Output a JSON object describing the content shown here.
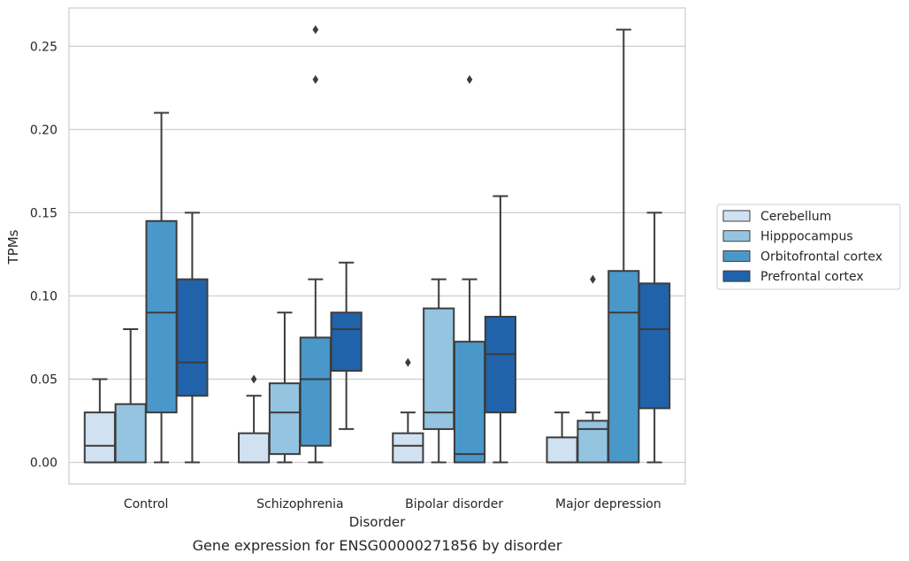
{
  "chart_data": {
    "type": "box",
    "categories": [
      "Control",
      "Schizophrenia",
      "Bipolar disorder",
      "Major depression"
    ],
    "xlabel": "Disorder",
    "ylabel": "TPMs",
    "caption": "Gene expression for ENSG00000271856 by disorder",
    "ylim": [
      -0.013,
      0.273
    ],
    "yticks": [
      0.0,
      0.05,
      0.1,
      0.15,
      0.2,
      0.25
    ],
    "ytick_labels": [
      "0.00",
      "0.05",
      "0.10",
      "0.15",
      "0.20",
      "0.25"
    ],
    "grid": "horizontal",
    "legend": {
      "position": "right",
      "entries": [
        "Cerebellum",
        "Hipppocampus",
        "Orbitofrontal cortex",
        "Prefrontal cortex"
      ]
    },
    "series": [
      {
        "name": "Cerebellum",
        "color": "#d0e1f2",
        "boxes": [
          {
            "whislo": 0.0,
            "q1": 0.0,
            "med": 0.01,
            "q3": 0.03,
            "whishi": 0.05,
            "fliers": []
          },
          {
            "whislo": 0.0,
            "q1": 0.0,
            "med": 0.0,
            "q3": 0.0175,
            "whishi": 0.04,
            "fliers": [
              0.05
            ]
          },
          {
            "whislo": 0.0,
            "q1": 0.0,
            "med": 0.01,
            "q3": 0.0175,
            "whishi": 0.03,
            "fliers": [
              0.06
            ]
          },
          {
            "whislo": 0.0,
            "q1": 0.0,
            "med": 0.0,
            "q3": 0.015,
            "whishi": 0.03,
            "fliers": []
          }
        ]
      },
      {
        "name": "Hipppocampus",
        "color": "#94c4df",
        "boxes": [
          {
            "whislo": 0.0,
            "q1": 0.0,
            "med": 0.0,
            "q3": 0.035,
            "whishi": 0.08,
            "fliers": []
          },
          {
            "whislo": 0.0,
            "q1": 0.005,
            "med": 0.03,
            "q3": 0.0475,
            "whishi": 0.09,
            "fliers": []
          },
          {
            "whislo": 0.0,
            "q1": 0.02,
            "med": 0.03,
            "q3": 0.0925,
            "whishi": 0.11,
            "fliers": []
          },
          {
            "whislo": 0.0,
            "q1": 0.0,
            "med": 0.02,
            "q3": 0.025,
            "whishi": 0.03,
            "fliers": [
              0.11
            ]
          }
        ]
      },
      {
        "name": "Orbitofrontal cortex",
        "color": "#4a98c9",
        "boxes": [
          {
            "whislo": 0.0,
            "q1": 0.03,
            "med": 0.09,
            "q3": 0.145,
            "whishi": 0.21,
            "fliers": []
          },
          {
            "whislo": 0.0,
            "q1": 0.01,
            "med": 0.05,
            "q3": 0.075,
            "whishi": 0.11,
            "fliers": [
              0.23,
              0.26
            ]
          },
          {
            "whislo": 0.0,
            "q1": 0.0,
            "med": 0.005,
            "q3": 0.0725,
            "whishi": 0.11,
            "fliers": [
              0.23
            ]
          },
          {
            "whislo": 0.0,
            "q1": 0.0,
            "med": 0.09,
            "q3": 0.115,
            "whishi": 0.26,
            "fliers": []
          }
        ]
      },
      {
        "name": "Prefrontal cortex",
        "color": "#2163aa",
        "boxes": [
          {
            "whislo": 0.0,
            "q1": 0.04,
            "med": 0.06,
            "q3": 0.11,
            "whishi": 0.15,
            "fliers": []
          },
          {
            "whislo": 0.02,
            "q1": 0.055,
            "med": 0.08,
            "q3": 0.09,
            "whishi": 0.12,
            "fliers": []
          },
          {
            "whislo": 0.0,
            "q1": 0.03,
            "med": 0.065,
            "q3": 0.0875,
            "whishi": 0.16,
            "fliers": []
          },
          {
            "whislo": 0.0,
            "q1": 0.0325,
            "med": 0.08,
            "q3": 0.1075,
            "whishi": 0.15,
            "fliers": []
          }
        ]
      }
    ]
  }
}
